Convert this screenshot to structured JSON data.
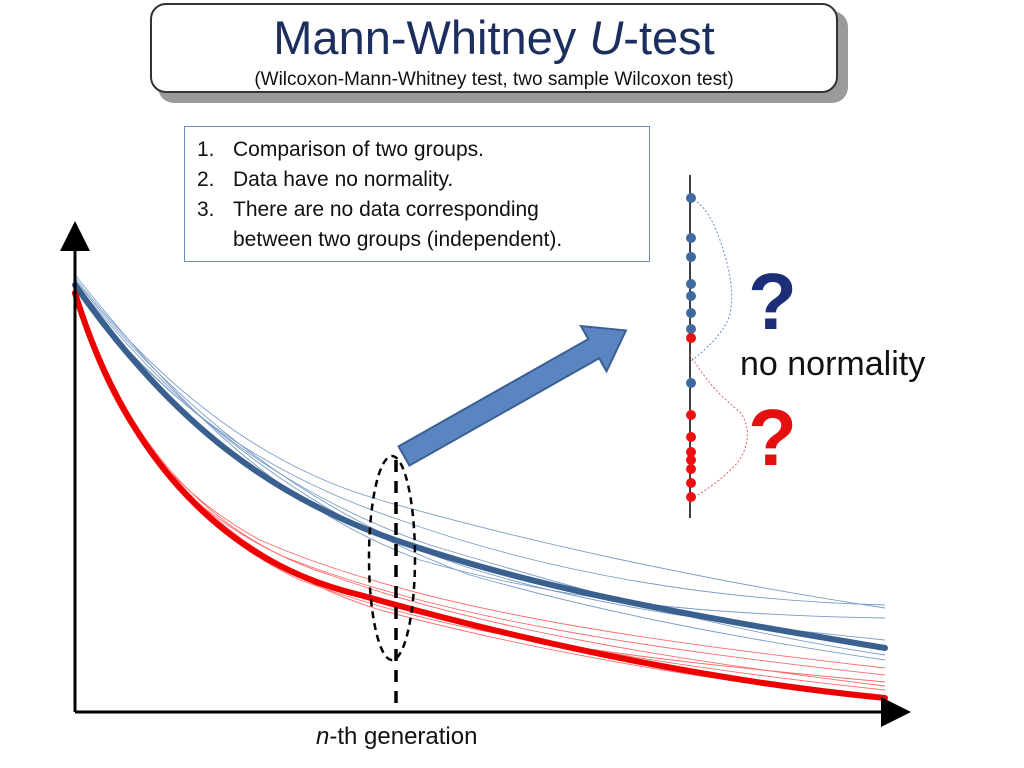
{
  "title": {
    "main_prefix": "Mann-Whitney ",
    "main_italic": "U",
    "main_suffix": "-test",
    "subtitle": "(Wilcoxon-Mann-Whitney test, two sample Wilcoxon test)"
  },
  "conditions": [
    {
      "num": "1.",
      "text": "Comparison of two groups."
    },
    {
      "num": "2.",
      "text": "Data have no normality."
    },
    {
      "num": "3.",
      "text": "There are no data corresponding"
    },
    {
      "num": "",
      "text": "between two groups (independent)."
    }
  ],
  "annotations": {
    "question_blue": "?",
    "question_red": "?",
    "no_normality": "no normality"
  },
  "axis": {
    "x_label_italic": "n",
    "x_label_rest": "-th generation"
  },
  "colors": {
    "title": "#1c2e5e",
    "blue_group": "#3a6090",
    "red_group": "#ee0000",
    "arrow_fill": "#5b85c0",
    "arrow_stroke": "#3a5f95"
  }
}
